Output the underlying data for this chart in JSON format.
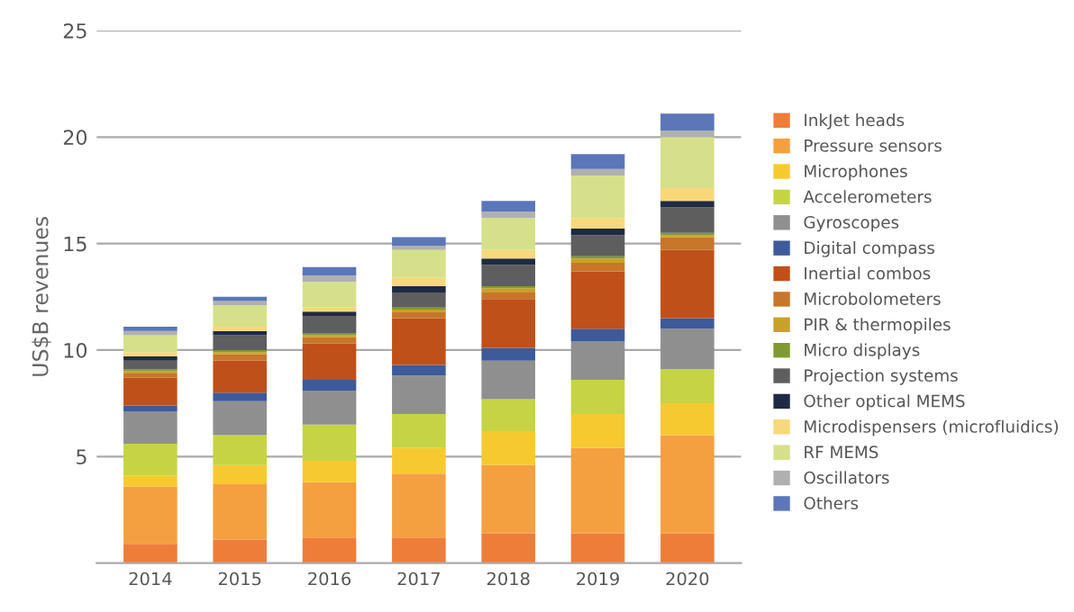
{
  "chart_data": {
    "type": "bar",
    "stacked": true,
    "ylabel": "US$B revenues",
    "categories": [
      "2014",
      "2015",
      "2016",
      "2017",
      "2018",
      "2019",
      "2020"
    ],
    "ylim": [
      0,
      25
    ],
    "yticks": [
      5,
      10,
      15,
      20,
      25
    ],
    "grid": "y",
    "legend": "right",
    "series": [
      {
        "name": "InkJet heads",
        "color": "#ee7d3a",
        "values": [
          0.9,
          1.1,
          1.2,
          1.2,
          1.4,
          1.4,
          1.4
        ]
      },
      {
        "name": "Pressure sensors",
        "color": "#f5a040",
        "values": [
          2.7,
          2.6,
          2.6,
          3.0,
          3.2,
          4.0,
          4.6
        ]
      },
      {
        "name": "Microphones",
        "color": "#f7c931",
        "values": [
          0.5,
          0.9,
          1.0,
          1.2,
          1.6,
          1.6,
          1.5
        ]
      },
      {
        "name": "Accelerometers",
        "color": "#c5d444",
        "values": [
          1.5,
          1.4,
          1.7,
          1.6,
          1.5,
          1.6,
          1.6
        ]
      },
      {
        "name": "Gyroscopes",
        "color": "#8f8f8f",
        "values": [
          1.5,
          1.6,
          1.6,
          1.8,
          1.8,
          1.8,
          1.9
        ]
      },
      {
        "name": "Digital compass",
        "color": "#3d5a9a",
        "values": [
          0.3,
          0.4,
          0.5,
          0.5,
          0.6,
          0.6,
          0.5
        ]
      },
      {
        "name": "Inertial combos",
        "color": "#c0501a",
        "values": [
          1.3,
          1.5,
          1.7,
          2.2,
          2.3,
          2.7,
          3.2
        ]
      },
      {
        "name": "Microbolometers",
        "color": "#c7762a",
        "values": [
          0.2,
          0.3,
          0.3,
          0.3,
          0.3,
          0.4,
          0.6
        ]
      },
      {
        "name": "PIR & thermopiles",
        "color": "#c9a02a",
        "values": [
          0.1,
          0.1,
          0.1,
          0.1,
          0.2,
          0.2,
          0.1
        ]
      },
      {
        "name": "Micro displays",
        "color": "#7f9a30",
        "values": [
          0.1,
          0.1,
          0.1,
          0.1,
          0.1,
          0.1,
          0.1
        ]
      },
      {
        "name": "Projection systems",
        "color": "#5e5e5e",
        "values": [
          0.4,
          0.7,
          0.8,
          0.7,
          1.0,
          1.0,
          1.2
        ]
      },
      {
        "name": "Other optical MEMS",
        "color": "#1f2a44",
        "values": [
          0.2,
          0.2,
          0.2,
          0.3,
          0.3,
          0.3,
          0.3
        ]
      },
      {
        "name": "Microdispensers (microfluidics)",
        "color": "#f7d87a",
        "values": [
          0.2,
          0.2,
          0.2,
          0.4,
          0.4,
          0.5,
          0.6
        ]
      },
      {
        "name": "RF MEMS",
        "color": "#d6e08a",
        "values": [
          0.8,
          1.0,
          1.2,
          1.3,
          1.5,
          2.0,
          2.4
        ]
      },
      {
        "name": "Oscillators",
        "color": "#b0b0b0",
        "values": [
          0.2,
          0.2,
          0.3,
          0.2,
          0.3,
          0.3,
          0.3
        ]
      },
      {
        "name": "Others",
        "color": "#5b76b9",
        "values": [
          0.2,
          0.2,
          0.4,
          0.4,
          0.5,
          0.7,
          0.8
        ]
      }
    ]
  }
}
